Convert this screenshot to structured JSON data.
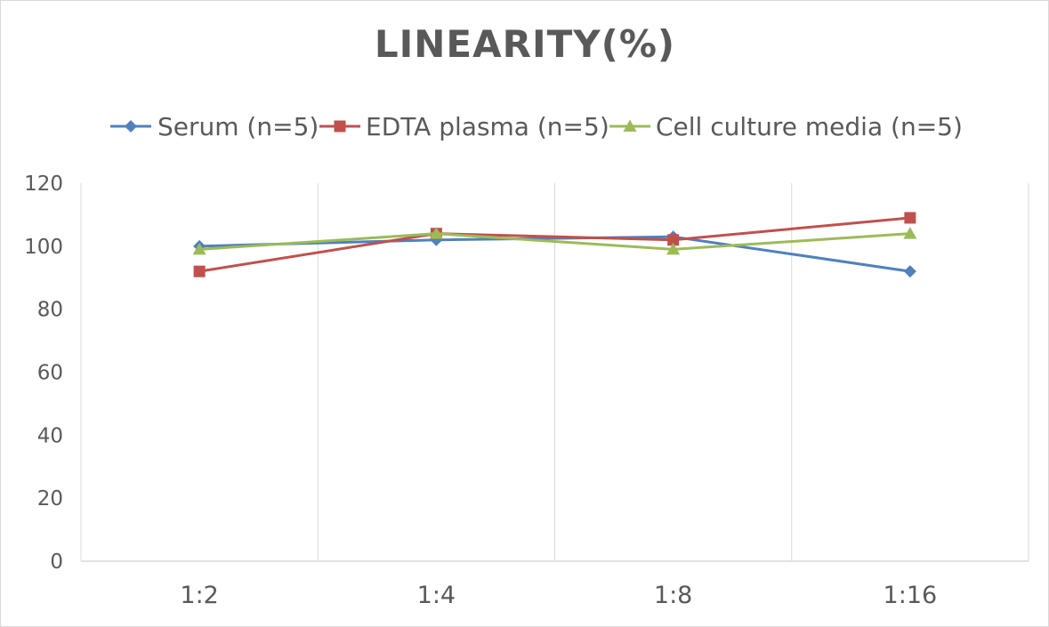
{
  "chart_data": {
    "type": "line",
    "title": "LINEARITY(%)",
    "xlabel": "",
    "ylabel": "",
    "categories": [
      "1:2",
      "1:4",
      "1:8",
      "1:16"
    ],
    "ylim": [
      0,
      120
    ],
    "yticks": [
      0,
      20,
      40,
      60,
      80,
      100,
      120
    ],
    "grid": "vertical category separators",
    "legend_position": "top",
    "series": [
      {
        "name": "Serum (n=5)",
        "values": [
          100,
          102,
          103,
          92
        ],
        "color": "#4f81bd",
        "marker": "diamond"
      },
      {
        "name": "EDTA plasma (n=5)",
        "values": [
          92,
          104,
          102,
          109
        ],
        "color": "#c0504d",
        "marker": "square"
      },
      {
        "name": "Cell culture media (n=5)",
        "values": [
          99,
          104,
          99,
          104
        ],
        "color": "#9bbb59",
        "marker": "triangle"
      }
    ]
  }
}
